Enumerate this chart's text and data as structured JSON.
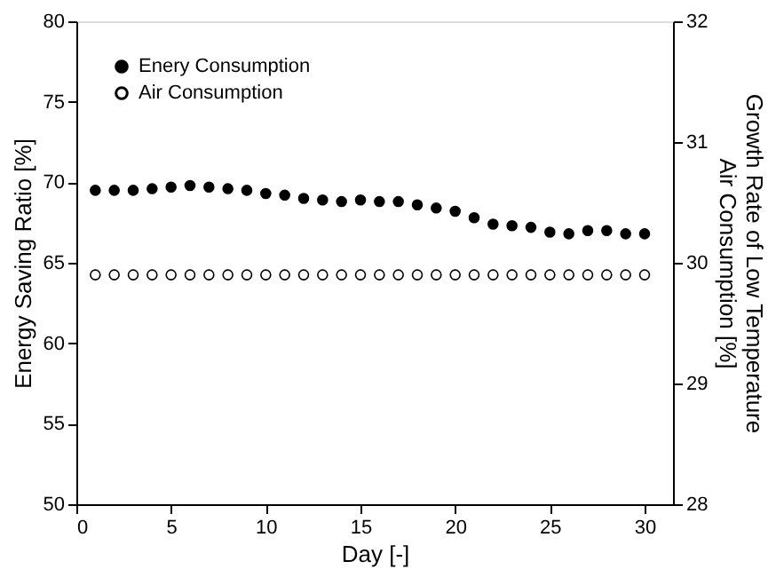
{
  "chart_data": {
    "type": "scatter",
    "xlabel": "Day [-]",
    "ylabel": "Energy Saving Ratio [%]",
    "y2label": "Growth Rate of Low Temperature\nAir Consumption [%]",
    "x": [
      1,
      2,
      3,
      4,
      5,
      6,
      7,
      8,
      9,
      10,
      11,
      12,
      13,
      14,
      15,
      16,
      17,
      18,
      19,
      20,
      21,
      22,
      23,
      24,
      25,
      26,
      27,
      28,
      29,
      30
    ],
    "series": [
      {
        "name": "Enery Consumption",
        "color": "#000000",
        "values": [
          69.5,
          69.5,
          69.5,
          69.6,
          69.7,
          69.8,
          69.7,
          69.6,
          69.5,
          69.3,
          69.2,
          69.0,
          68.9,
          68.8,
          68.9,
          68.8,
          68.8,
          68.6,
          68.4,
          68.2,
          67.8,
          67.4,
          67.3,
          67.2,
          66.9,
          66.8,
          67.0,
          67.0,
          66.8,
          66.8
        ]
      },
      {
        "name": "Air Consumption",
        "color": "#ffffff",
        "axis": "y2",
        "values": [
          29.9,
          29.9,
          29.9,
          29.9,
          29.9,
          29.9,
          29.9,
          29.9,
          29.9,
          29.9,
          29.9,
          29.9,
          29.9,
          29.9,
          29.9,
          29.9,
          29.9,
          29.9,
          29.9,
          29.9,
          29.9,
          29.9,
          29.9,
          29.9,
          29.9,
          29.9,
          29.9,
          29.9,
          29.9,
          29.9
        ]
      }
    ],
    "xlim": [
      0,
      31.5
    ],
    "xticks": [
      0,
      5,
      10,
      15,
      20,
      25,
      30
    ],
    "ylim": [
      50,
      80
    ],
    "yticks": [
      50,
      55,
      60,
      65,
      70,
      75,
      80
    ],
    "y2lim": [
      28,
      32
    ],
    "y2ticks": [
      28,
      29,
      30,
      31,
      32
    ],
    "marker": "circle",
    "grid": false,
    "legend": "top left"
  }
}
